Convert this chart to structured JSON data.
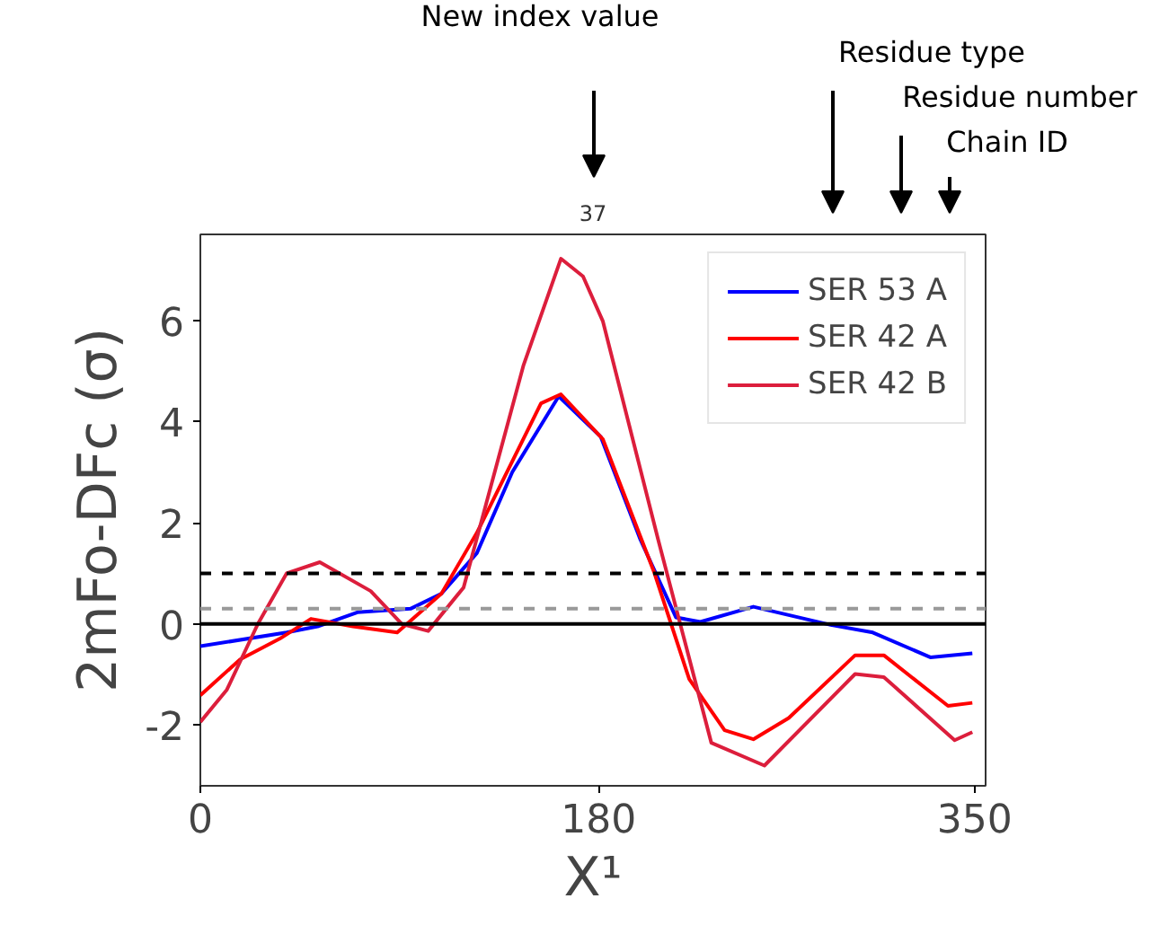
{
  "chart_data": {
    "type": "line",
    "title": "37",
    "xlabel": "X¹",
    "ylabel": "2mFo-DFc (σ)",
    "annotations": [
      "New index value",
      "Residue type",
      "Residue number",
      "Chain ID"
    ],
    "xlim": [
      0,
      355
    ],
    "ylim": [
      -3.2,
      7.7
    ],
    "xticks": [
      0,
      180,
      350
    ],
    "yticks": [
      -2,
      0,
      2,
      4,
      6
    ],
    "grid": false,
    "legend": "top right",
    "line_style": "solid",
    "ref_lines": [
      {
        "axis": "y",
        "value": 1,
        "color": "#000000",
        "line_style": "dashed"
      },
      {
        "axis": "y",
        "value": 0.3,
        "color": "#999999",
        "line_style": "dashed"
      },
      {
        "axis": "y",
        "value": 0,
        "color": "#000000",
        "line_style": "solid"
      }
    ],
    "series": [
      {
        "name": "SER 53 A",
        "color": "#0000ff",
        "x": [
          0,
          39,
          53,
          71,
          95,
          109,
          125,
          141,
          162,
          181,
          199,
          215,
          226,
          250,
          285,
          304,
          330,
          349
        ],
        "values": [
          -0.44,
          -0.17,
          -0.05,
          0.23,
          0.3,
          0.6,
          1.4,
          3.0,
          4.5,
          3.7,
          1.66,
          0.13,
          0.04,
          0.34,
          -0.02,
          -0.17,
          -0.66,
          -0.58
        ]
      },
      {
        "name": "SER 42 A",
        "color": "#ff0000",
        "x": [
          0,
          18,
          36,
          50,
          69,
          89,
          109,
          125,
          154,
          163,
          182,
          205,
          221,
          237,
          250,
          266,
          296,
          309,
          338,
          349
        ],
        "values": [
          -1.41,
          -0.7,
          -0.29,
          0.1,
          -0.05,
          -0.17,
          0.6,
          1.8,
          4.36,
          4.54,
          3.65,
          1.04,
          -1.09,
          -2.1,
          -2.28,
          -1.86,
          -0.62,
          -0.62,
          -1.62,
          -1.56
        ]
      },
      {
        "name": "SER 42 B",
        "color": "#dc1e3c",
        "x": [
          0,
          12,
          26,
          39,
          54,
          77,
          91,
          103,
          119,
          146,
          163,
          173,
          182,
          207,
          231,
          255,
          296,
          309,
          341,
          349
        ],
        "values": [
          -1.94,
          -1.3,
          0.0,
          1.0,
          1.22,
          0.65,
          0.0,
          -0.14,
          0.72,
          5.1,
          7.22,
          6.87,
          5.98,
          1.66,
          -2.35,
          -2.8,
          -0.99,
          -1.05,
          -2.3,
          -2.14
        ]
      }
    ]
  }
}
